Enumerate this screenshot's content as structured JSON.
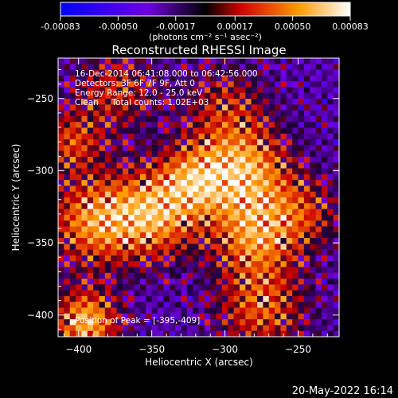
{
  "colorbar": {
    "ticks": [
      "-0.00083",
      "-0.00050",
      "-0.00017",
      "0.00017",
      "0.00050",
      "0.00083"
    ],
    "unit_label": "(photons cm⁻² s⁻¹ asec⁻²)",
    "range": [
      -0.00083,
      0.00083
    ],
    "palette": [
      "#0000ff",
      "#7000e0",
      "#000000",
      "#cc0000",
      "#ff9900",
      "#ffffff"
    ]
  },
  "chart_data": {
    "type": "heatmap",
    "title": "Reconstructed RHESSI Image",
    "xlabel": "Heliocentric X (arcsec)",
    "ylabel": "Heliocentric Y (arcsec)",
    "xlim": [
      -414,
      -222
    ],
    "ylim": [
      -415,
      -222
    ],
    "xticks": [
      -400,
      -350,
      -300,
      -250
    ],
    "yticks": [
      -250,
      -300,
      -350,
      -400
    ],
    "grid": false,
    "annotations": [
      "16-Dec-2014 06:41:08.000 to 06:42:56.000",
      "Detectors: 3F 6F 7F 9F, Att 0",
      "Energy Range: 12.0 - 25.0 keV",
      "Clean     Total counts: 1.02E+03"
    ],
    "peak_label": "Position of Peak = [-395,-409]",
    "peak": [
      -395,
      -409
    ]
  },
  "footer": {
    "timestamp": "20-May-2022 16:14"
  }
}
